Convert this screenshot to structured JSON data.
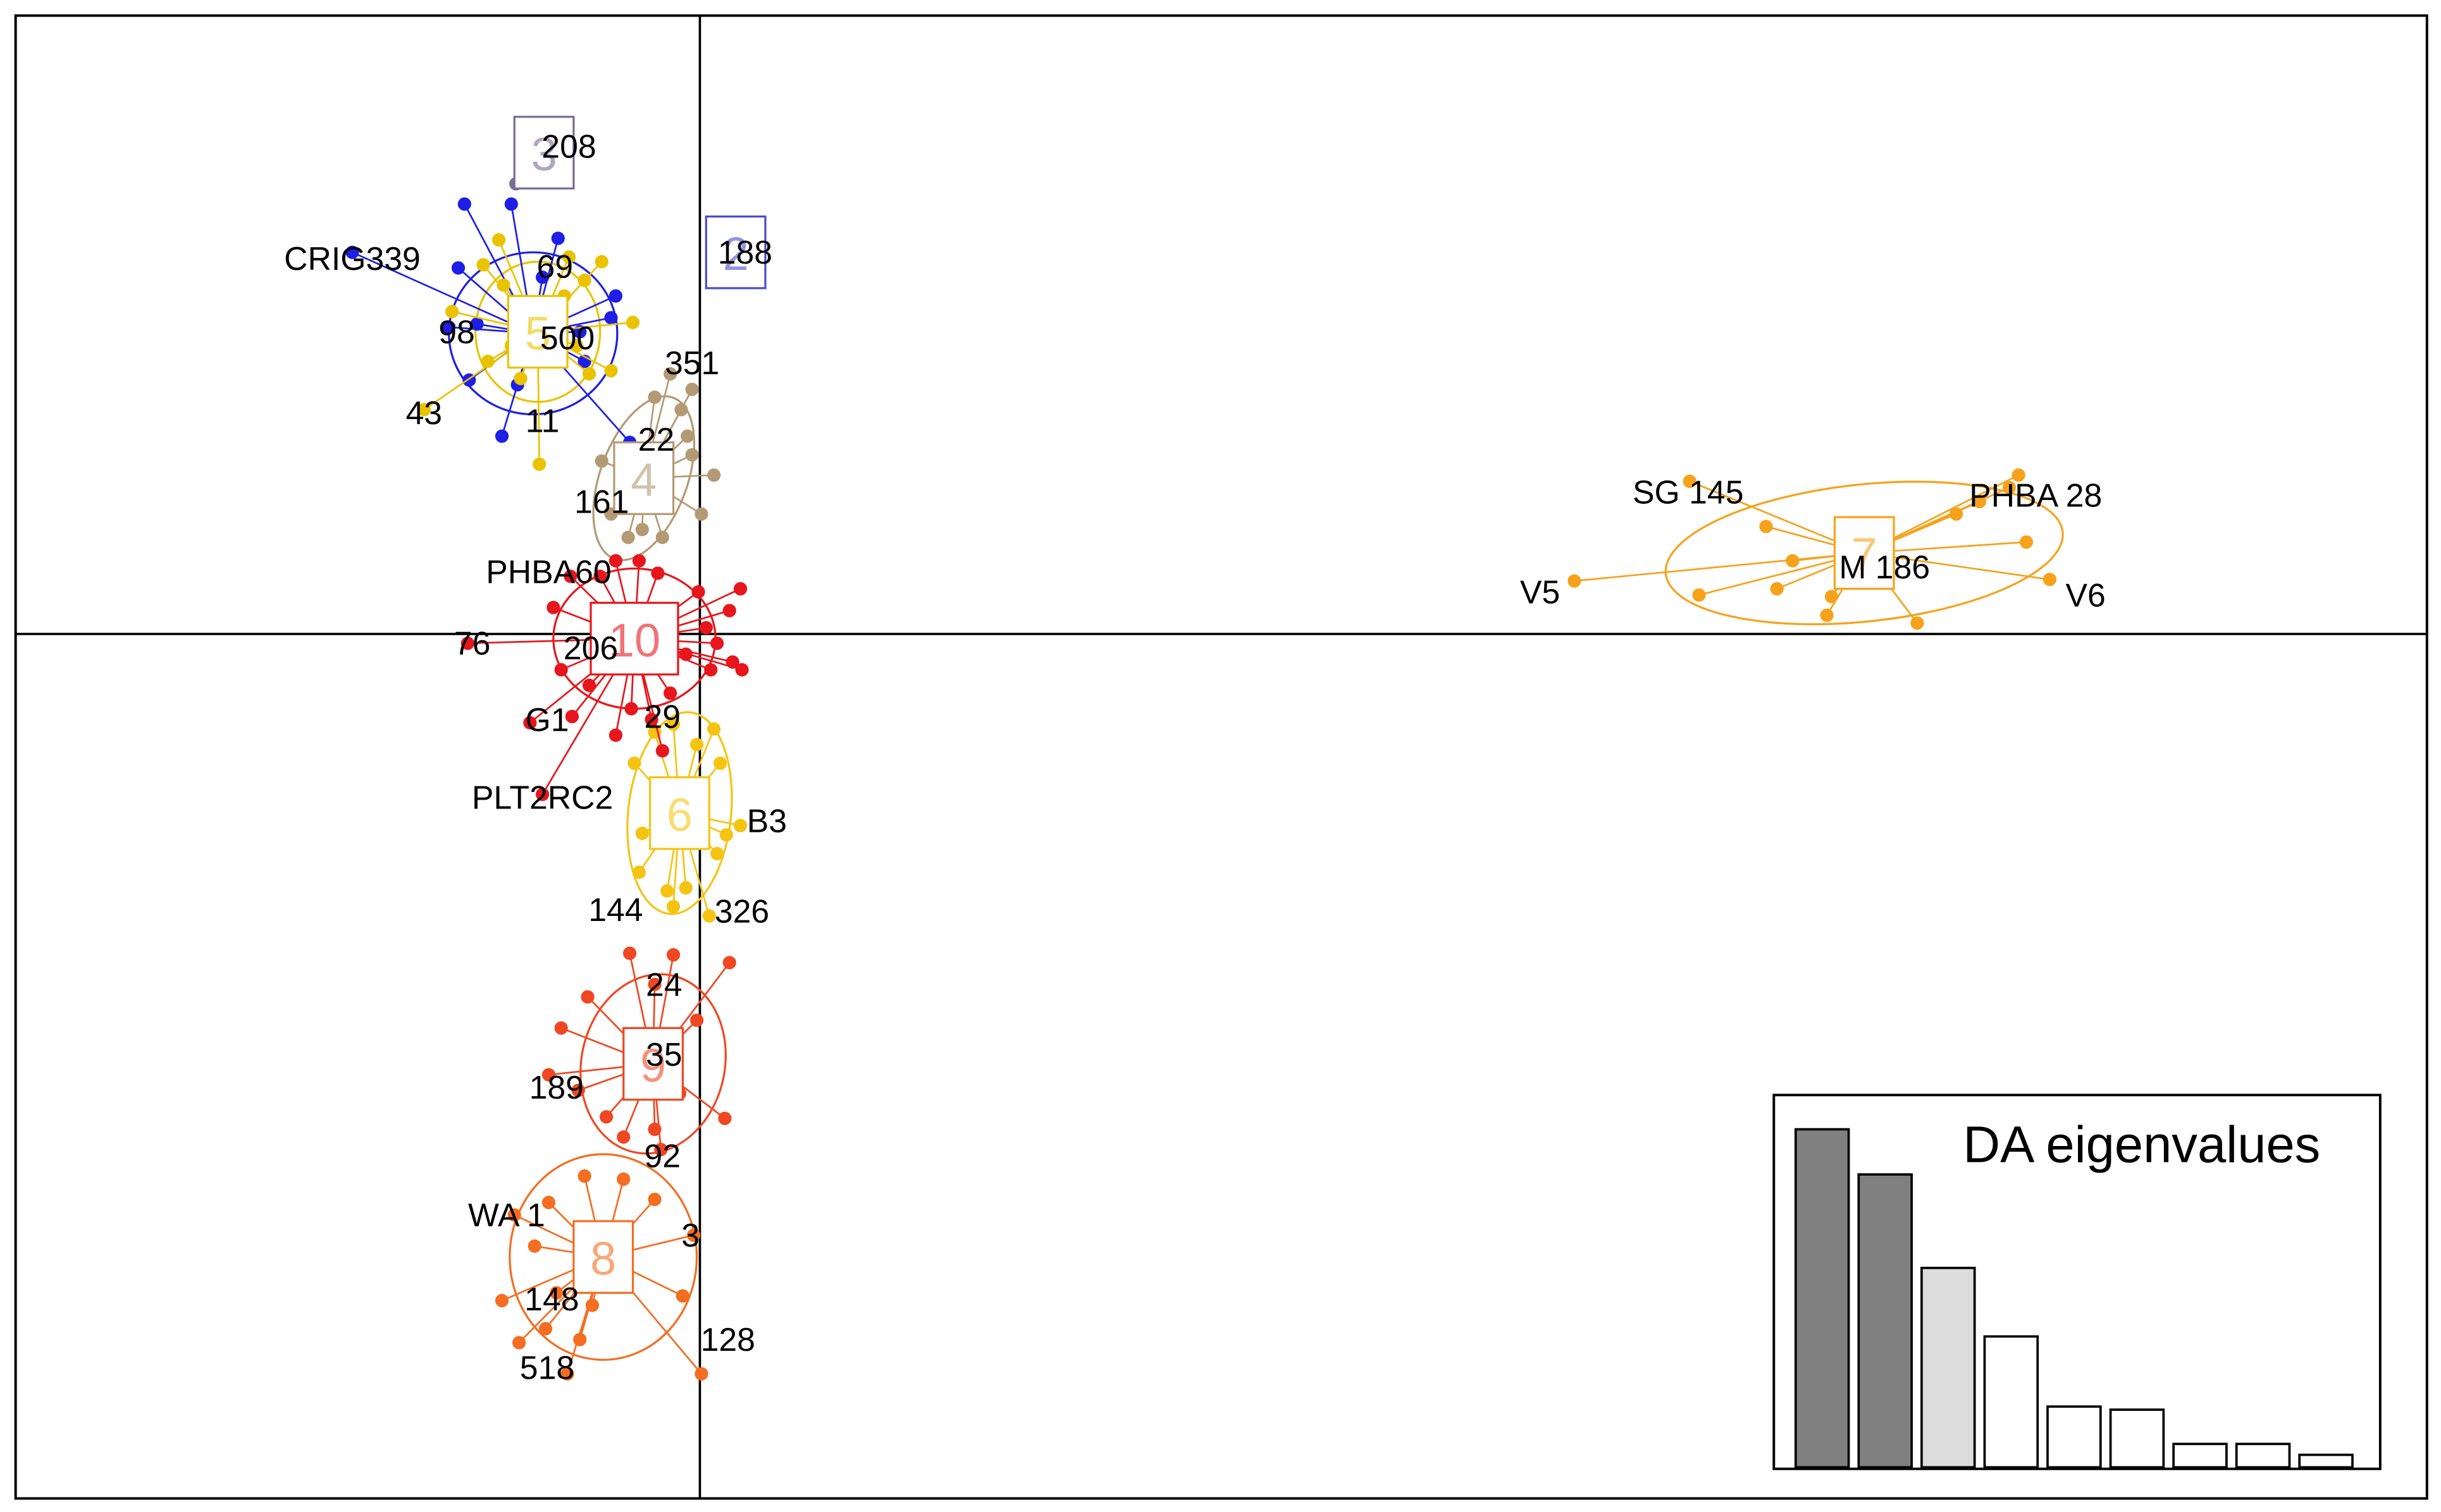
{
  "chart_data": {
    "type": "scatter",
    "xlim": [
      -4.39,
      11.08
    ],
    "ylim": [
      -5.55,
      3.97
    ],
    "axes_through_origin": true,
    "clusters": [
      {
        "id": 1,
        "color": "#1e1ee6",
        "center": [
          -1.07,
          1.93
        ],
        "ellipse": {
          "rx": 0.54,
          "ry": 0.52,
          "angle": 0
        },
        "points": [
          [
            -2.23,
            2.45
          ],
          [
            -1.51,
            2.76
          ],
          [
            -1.21,
            2.76
          ],
          [
            -1.55,
            2.35
          ],
          [
            -1.61,
            1.97
          ],
          [
            -1.48,
            1.63
          ],
          [
            -1.27,
            1.27
          ],
          [
            -1.17,
            1.6
          ],
          [
            -0.54,
            2.17
          ],
          [
            -0.57,
            2.03
          ],
          [
            -0.77,
            1.94
          ],
          [
            -0.74,
            1.75
          ],
          [
            -0.91,
            2.54
          ],
          [
            -0.45,
            1.23
          ],
          [
            -1.43,
            1.99
          ],
          [
            -1.01,
            2.29
          ]
        ]
      },
      {
        "id": 2,
        "label": "2",
        "color": "#4b4bcc",
        "center": [
          0.23,
          2.45
        ],
        "points": [
          [
            0.23,
            2.45
          ]
        ]
      },
      {
        "id": 3,
        "label": "3",
        "color": "#7b6b97",
        "center": [
          -1.0,
          3.09
        ],
        "points": [
          [
            -1.18,
            2.89
          ],
          [
            -0.84,
            3.13
          ]
        ]
      },
      {
        "id": 4,
        "label": "4",
        "color": "#b39a74",
        "center": [
          -0.36,
          1.0
        ],
        "ellipse": {
          "rx": 0.28,
          "ry": 0.55,
          "angle": -20
        },
        "points": [
          [
            -0.05,
            1.57
          ],
          [
            -0.12,
            1.44
          ],
          [
            -0.08,
            1.27
          ],
          [
            -0.05,
            1.15
          ],
          [
            0.09,
            1.02
          ],
          [
            0.01,
            0.77
          ],
          [
            -0.24,
            0.62
          ],
          [
            -0.46,
            0.62
          ],
          [
            -0.57,
            0.77
          ],
          [
            -0.49,
            1.07
          ],
          [
            -0.63,
            1.11
          ],
          [
            -0.29,
            1.52
          ],
          [
            -0.19,
            1.67
          ],
          [
            -0.37,
            0.67
          ]
        ]
      },
      {
        "id": 5,
        "label": "5",
        "color": "#e9c300",
        "center": [
          -1.04,
          1.94
        ],
        "ellipse": {
          "rx": 0.4,
          "ry": 0.45,
          "angle": 0
        },
        "points": [
          [
            -1.03,
            1.09
          ],
          [
            -1.15,
            1.64
          ],
          [
            -1.26,
            2.24
          ],
          [
            -1.39,
            2.37
          ],
          [
            -1.29,
            2.53
          ],
          [
            -0.63,
            2.39
          ],
          [
            -0.74,
            2.27
          ],
          [
            -0.43,
            2.0
          ],
          [
            -0.71,
            1.67
          ],
          [
            -0.57,
            1.69
          ],
          [
            -1.77,
            1.44
          ],
          [
            -1.59,
            2.07
          ],
          [
            -1.21,
            1.85
          ],
          [
            -0.84,
            2.42
          ],
          [
            -0.87,
            2.17
          ],
          [
            -0.79,
            1.85
          ],
          [
            -1.36,
            1.75
          ]
        ]
      },
      {
        "id": 6,
        "label": "6",
        "color": "#f5c412",
        "center": [
          -0.13,
          -1.15
        ],
        "ellipse": {
          "rx": 0.33,
          "ry": 0.65,
          "angle": -6
        },
        "points": [
          [
            0.09,
            -0.61
          ],
          [
            -0.02,
            -0.71
          ],
          [
            0.13,
            -0.83
          ],
          [
            0.17,
            -1.29
          ],
          [
            0.11,
            -1.41
          ],
          [
            -0.09,
            -1.63
          ],
          [
            -0.21,
            -1.65
          ],
          [
            -0.39,
            -1.53
          ],
          [
            -0.37,
            -1.28
          ],
          [
            -0.42,
            -0.83
          ],
          [
            -0.29,
            -0.63
          ],
          [
            -0.17,
            -0.58
          ],
          [
            0.06,
            -1.81
          ],
          [
            -0.17,
            -1.75
          ],
          [
            0.26,
            -1.23
          ]
        ]
      },
      {
        "id": 7,
        "label": "7",
        "color": "#f7a21b",
        "center": [
          7.47,
          0.52
        ],
        "ellipse": {
          "rx": 1.28,
          "ry": 0.44,
          "angle": 6
        },
        "points": [
          [
            8.46,
            1.02
          ],
          [
            8.4,
            0.94
          ],
          [
            8.51,
            0.59
          ],
          [
            7.81,
            0.07
          ],
          [
            7.23,
            0.12
          ],
          [
            6.35,
            0.98
          ],
          [
            6.84,
            0.69
          ],
          [
            6.41,
            0.25
          ],
          [
            6.91,
            0.29
          ],
          [
            7.01,
            0.47
          ],
          [
            7.26,
            0.24
          ],
          [
            8.06,
            0.77
          ],
          [
            5.61,
            0.34
          ],
          [
            8.66,
            0.35
          ],
          [
            8.21,
            0.85
          ]
        ]
      },
      {
        "id": 8,
        "label": "8",
        "color": "#f46d20",
        "center": [
          -0.62,
          -4.0
        ],
        "ellipse": {
          "rx": 0.6,
          "ry": 0.66,
          "angle": 0
        },
        "points": [
          [
            -1.27,
            -4.28
          ],
          [
            -1.16,
            -4.55
          ],
          [
            -0.99,
            -4.46
          ],
          [
            -0.77,
            -4.53
          ],
          [
            0.01,
            -4.75
          ],
          [
            -0.11,
            -4.25
          ],
          [
            -0.04,
            -3.86
          ],
          [
            -0.29,
            -3.63
          ],
          [
            -0.49,
            -3.5
          ],
          [
            -0.74,
            -3.48
          ],
          [
            -0.97,
            -3.65
          ],
          [
            -1.06,
            -3.93
          ],
          [
            -0.92,
            -4.23
          ],
          [
            -0.69,
            -4.31
          ],
          [
            -0.85,
            -4.75
          ],
          [
            -1.19,
            -3.73
          ]
        ]
      },
      {
        "id": 9,
        "label": "9",
        "color": "#ef4722",
        "center": [
          -0.3,
          -2.76
        ],
        "ellipse": {
          "rx": 0.46,
          "ry": 0.58,
          "angle": -12
        },
        "points": [
          [
            -0.45,
            -2.05
          ],
          [
            -0.17,
            -2.06
          ],
          [
            0.19,
            -2.11
          ],
          [
            -0.29,
            -2.25
          ],
          [
            -0.72,
            -2.33
          ],
          [
            -0.89,
            -2.53
          ],
          [
            -0.97,
            -2.83
          ],
          [
            -0.78,
            -2.93
          ],
          [
            -0.49,
            -3.23
          ],
          [
            -0.29,
            -3.18
          ],
          [
            -0.25,
            -3.31
          ],
          [
            0.16,
            -3.11
          ],
          [
            -0.13,
            -2.95
          ],
          [
            -0.6,
            -3.1
          ],
          [
            -0.02,
            -2.48
          ]
        ]
      },
      {
        "id": 10,
        "label": "10",
        "color": "#e6161c",
        "center": [
          -0.42,
          -0.03
        ],
        "ellipse": {
          "rx": 0.52,
          "ry": 0.45,
          "angle": 0
        },
        "points": [
          [
            0.26,
            0.29
          ],
          [
            0.19,
            0.15
          ],
          [
            0.04,
            0.04
          ],
          [
            0.11,
            -0.06
          ],
          [
            0.21,
            -0.18
          ],
          [
            0.07,
            -0.23
          ],
          [
            0.27,
            -0.23
          ],
          [
            -0.09,
            -0.13
          ],
          [
            -0.19,
            -0.38
          ],
          [
            -0.31,
            -0.55
          ],
          [
            -0.44,
            -0.48
          ],
          [
            -0.71,
            -0.33
          ],
          [
            -0.82,
            -0.53
          ],
          [
            -1.01,
            -1.03
          ],
          [
            -1.09,
            -0.57
          ],
          [
            -1.49,
            -0.06
          ],
          [
            -0.94,
            0.17
          ],
          [
            -0.83,
            0.37
          ],
          [
            -0.64,
            0.37
          ],
          [
            -0.54,
            0.47
          ],
          [
            -0.39,
            0.47
          ],
          [
            -0.27,
            0.39
          ],
          [
            -0.24,
            -0.75
          ],
          [
            -0.54,
            -0.65
          ],
          [
            -0.89,
            -0.23
          ],
          [
            -0.01,
            0.27
          ]
        ]
      }
    ],
    "labels": [
      {
        "text": "208",
        "x": -0.84,
        "y": 3.13
      },
      {
        "text": "188",
        "x": 0.29,
        "y": 2.45
      },
      {
        "text": "CRIG339",
        "x": -2.23,
        "y": 2.41
      },
      {
        "text": "69",
        "x": -0.93,
        "y": 2.36
      },
      {
        "text": "98",
        "x": -1.56,
        "y": 1.94
      },
      {
        "text": "500",
        "x": -0.85,
        "y": 1.9
      },
      {
        "text": "351",
        "x": -0.05,
        "y": 1.74
      },
      {
        "text": "43",
        "x": -1.77,
        "y": 1.42
      },
      {
        "text": "11",
        "x": -1.01,
        "y": 1.37
      },
      {
        "text": "22",
        "x": -0.28,
        "y": 1.25
      },
      {
        "text": "161",
        "x": -0.63,
        "y": 0.85
      },
      {
        "text": "PHBA60",
        "x": -0.97,
        "y": 0.4
      },
      {
        "text": "76",
        "x": -1.46,
        "y": -0.06
      },
      {
        "text": "206",
        "x": -0.7,
        "y": -0.09
      },
      {
        "text": "G1",
        "x": -0.98,
        "y": -0.55
      },
      {
        "text": "29",
        "x": -0.24,
        "y": -0.53
      },
      {
        "text": "PLT2RC2",
        "x": -1.01,
        "y": -1.05
      },
      {
        "text": "B3",
        "x": 0.43,
        "y": -1.2
      },
      {
        "text": "144",
        "x": -0.54,
        "y": -1.77
      },
      {
        "text": "326",
        "x": 0.27,
        "y": -1.78
      },
      {
        "text": "24",
        "x": -0.23,
        "y": -2.25
      },
      {
        "text": "35",
        "x": -0.23,
        "y": -2.7
      },
      {
        "text": "189",
        "x": -0.92,
        "y": -2.91
      },
      {
        "text": "92",
        "x": -0.24,
        "y": -3.35
      },
      {
        "text": "WA 1",
        "x": -1.24,
        "y": -3.73
      },
      {
        "text": "3",
        "x": -0.06,
        "y": -3.86
      },
      {
        "text": "148",
        "x": -0.95,
        "y": -4.27
      },
      {
        "text": "128",
        "x": 0.18,
        "y": -4.53
      },
      {
        "text": "518",
        "x": -0.98,
        "y": -4.71
      },
      {
        "text": "SG 145",
        "x": 6.34,
        "y": 0.91
      },
      {
        "text": "PHBA 28",
        "x": 8.57,
        "y": 0.89
      },
      {
        "text": "M 186",
        "x": 7.6,
        "y": 0.43
      },
      {
        "text": "V5",
        "x": 5.39,
        "y": 0.27
      },
      {
        "text": "V6",
        "x": 8.89,
        "y": 0.25
      }
    ],
    "eigenvalues": {
      "title": "DA eigenvalues",
      "values": [
        21.7,
        18.8,
        12.8,
        8.4,
        3.9,
        3.7,
        1.5,
        1.5,
        0.8
      ],
      "fills": [
        "#808080",
        "#808080",
        "#dcdcdc",
        "#ffffff",
        "#ffffff",
        "#ffffff",
        "#ffffff",
        "#ffffff",
        "#ffffff"
      ]
    }
  }
}
